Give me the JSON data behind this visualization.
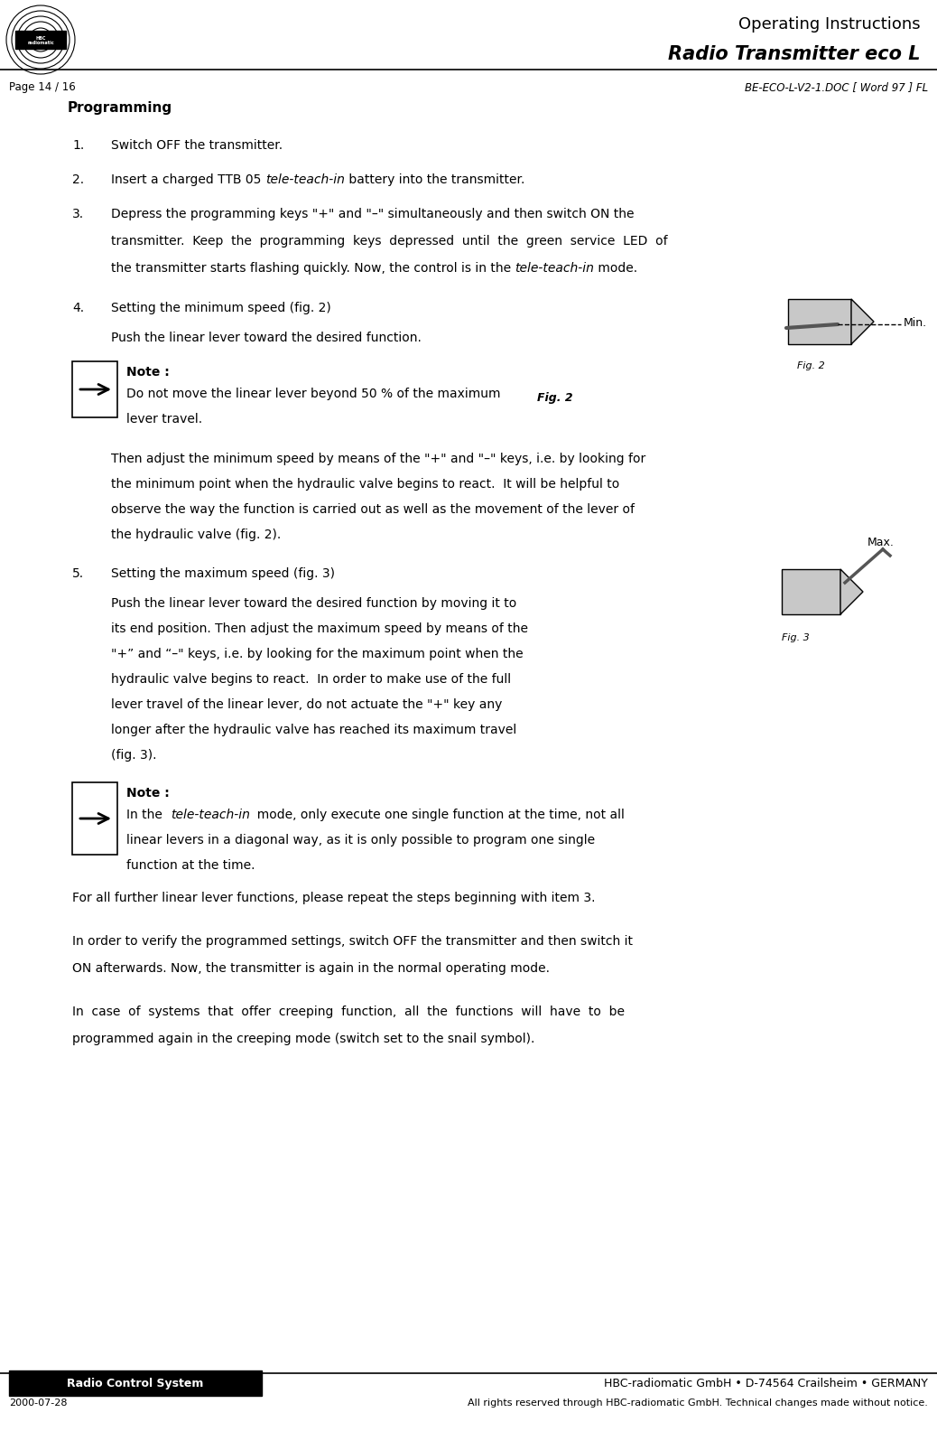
{
  "page_width": 10.38,
  "page_height": 16.06,
  "bg_color": "#ffffff",
  "header": {
    "title_line1": "Operating Instructions",
    "title_line2": "Radio Transmitter eco L",
    "page_info": "Page 14 / 16",
    "doc_ref": "BE-ECO-L-V2-1.DOC [ Word 97 ] FL"
  },
  "footer": {
    "left_box_text": "Radio Control System",
    "left_box_bg": "#000000",
    "left_box_fg": "#ffffff",
    "company": "HBC-radiomatic GmbH • D-74564 Crailsheim • GERMANY",
    "date": "2000-07-28",
    "rights": "All rights reserved through HBC-radiomatic GmbH. Technical changes made without notice."
  },
  "section_title": "Programming",
  "items": [
    {
      "num": "1.",
      "text": "Switch OFF the transmitter."
    },
    {
      "num": "2.",
      "text": "Insert a charged TTB 05 {italic:tele-teach-in} battery into the transmitter."
    },
    {
      "num": "3.",
      "text": "Depress the programming keys \"+\" and \"–\" simultaneously and then switch ON the\ntransmitter.  Keep  the  programming  keys  depressed  until  the  green  service  LED  of\nthe transmitter starts flashing quickly. Now, the control is in the {italic:tele-teach-in} mode."
    },
    {
      "num": "4.",
      "text": "Setting the minimum speed (fig. 2)\n\nPush the linear lever toward the desired function."
    },
    {
      "num": "5.",
      "text": "Setting the maximum speed (fig. 3)\n\nPush the linear lever toward the desired function by moving it to\nits end position. Then adjust the maximum speed by means of the\n\"+\" and \"–\" keys, i.e. by looking for the maximum point when the\nhydraulic valve begins to react.  In order to make use of the full\nlever travel of the linear lever, do not actuate the \"+\" key any\nlonger after the hydraulic valve has reached its maximum travel\n(fig. 3)."
    }
  ],
  "note1": {
    "title": "Note :",
    "text": "Do not move the linear lever beyond 50 % of the maximum\nlever travel."
  },
  "note2": {
    "title": "Note :",
    "text": "In the  {italic:tele-teach-in}  mode, only execute one single function at the time, not all\nlinear levers in a diagonal way, as it is only possible to program one single\nfunction at the time."
  },
  "para1": "For all further linear lever functions, please repeat the steps beginning with item 3.",
  "para2": "In order to verify the programmed settings, switch OFF the transmitter and then switch it\nON afterwards. Now, the transmitter is again in the normal operating mode.",
  "para3": "In  case  of  systems  that  offer  creeping  function,  all  the  functions  will  have  to  be\nprogrammed again in the creeping mode (switch set to the snail symbol).",
  "fig2_label": "Fig. 2",
  "fig3_label": "Fig. 3",
  "min_label": "Min.",
  "max_label": "Max."
}
